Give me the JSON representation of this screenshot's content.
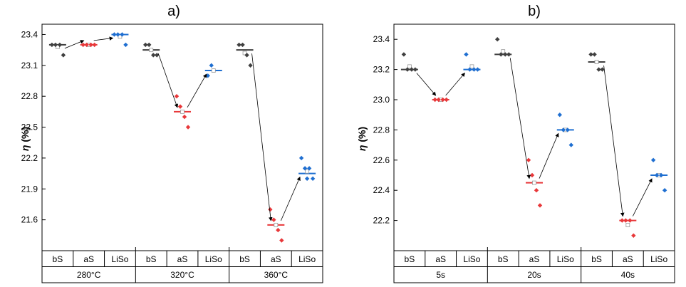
{
  "chart_data": [
    {
      "type": "scatter",
      "title": "a)",
      "ylabel": "η (%)",
      "ylabel_symbol": "η",
      "ylabel_unit": " (%)",
      "ylim": [
        21.3,
        23.5
      ],
      "yticks": [
        21.6,
        21.9,
        22.2,
        22.5,
        22.8,
        23.1,
        23.4
      ],
      "sub_labels": [
        "bS",
        "aS",
        "LiSo"
      ],
      "group_labels": [
        "280°C",
        "320°C",
        "360°C"
      ],
      "colors": {
        "bS": "#404040",
        "aS": "#e8383a",
        "LiSo": "#1f6fd1"
      },
      "groups": [
        {
          "label": "280°C",
          "bS": {
            "points": [
              23.3,
              23.3,
              23.3,
              23.2
            ],
            "median": 23.3,
            "mean": 23.28
          },
          "aS": {
            "points": [
              23.3,
              23.3,
              23.3,
              23.3
            ],
            "median": 23.3,
            "mean": 23.3
          },
          "LiSo": {
            "points": [
              23.4,
              23.4,
              23.4,
              23.3
            ],
            "median": 23.4,
            "mean": 23.38
          }
        },
        {
          "label": "320°C",
          "bS": {
            "points": [
              23.3,
              23.3,
              23.2,
              23.2
            ],
            "median": 23.25,
            "mean": 23.25
          },
          "aS": {
            "points": [
              22.8,
              22.7,
              22.6,
              22.5
            ],
            "median": 22.65,
            "mean": 22.65
          },
          "LiSo": {
            "points": [
              23.0,
              23.1
            ],
            "median": 23.05,
            "mean": 23.05
          }
        },
        {
          "label": "360°C",
          "bS": {
            "points": [
              23.3,
              23.3,
              23.2,
              23.1
            ],
            "median": 23.25,
            "mean": 23.22
          },
          "aS": {
            "points": [
              21.7,
              21.6,
              21.5,
              21.4
            ],
            "median": 21.55,
            "mean": 21.55
          },
          "LiSo": {
            "points": [
              22.2,
              22.1,
              22.1,
              22.0,
              22.0
            ],
            "median": 22.05,
            "mean": 22.07
          }
        }
      ]
    },
    {
      "type": "scatter",
      "title": "b)",
      "ylabel": "η (%)",
      "ylabel_symbol": "η",
      "ylabel_unit": " (%)",
      "ylim": [
        22.0,
        23.5
      ],
      "yticks": [
        22.2,
        22.4,
        22.6,
        22.8,
        23.0,
        23.2,
        23.4
      ],
      "sub_labels": [
        "bS",
        "aS",
        "LiSo"
      ],
      "group_labels": [
        "5s",
        "20s",
        "40s"
      ],
      "colors": {
        "bS": "#404040",
        "aS": "#e8383a",
        "LiSo": "#1f6fd1"
      },
      "groups": [
        {
          "label": "5s",
          "bS": {
            "points": [
              23.3,
              23.2,
              23.2,
              23.2
            ],
            "median": 23.2,
            "mean": 23.22
          },
          "aS": {
            "points": [
              23.0,
              23.0,
              23.0,
              23.0
            ],
            "median": 23.0,
            "mean": 23.0
          },
          "LiSo": {
            "points": [
              23.3,
              23.2,
              23.2,
              23.2
            ],
            "median": 23.2,
            "mean": 23.22
          }
        },
        {
          "label": "20s",
          "bS": {
            "points": [
              23.4,
              23.3,
              23.3,
              23.3
            ],
            "median": 23.3,
            "mean": 23.32
          },
          "aS": {
            "points": [
              22.6,
              22.5,
              22.4,
              22.3
            ],
            "median": 22.45,
            "mean": 22.45
          },
          "LiSo": {
            "points": [
              22.9,
              22.8,
              22.8,
              22.7
            ],
            "median": 22.8,
            "mean": 22.8
          }
        },
        {
          "label": "40s",
          "bS": {
            "points": [
              23.3,
              23.3,
              23.2,
              23.2
            ],
            "median": 23.25,
            "mean": 23.25
          },
          "aS": {
            "points": [
              22.2,
              22.2,
              22.2,
              22.1
            ],
            "median": 22.2,
            "mean": 22.17
          },
          "LiSo": {
            "points": [
              22.6,
              22.5,
              22.5,
              22.4
            ],
            "median": 22.5,
            "mean": 22.5
          }
        }
      ]
    }
  ]
}
